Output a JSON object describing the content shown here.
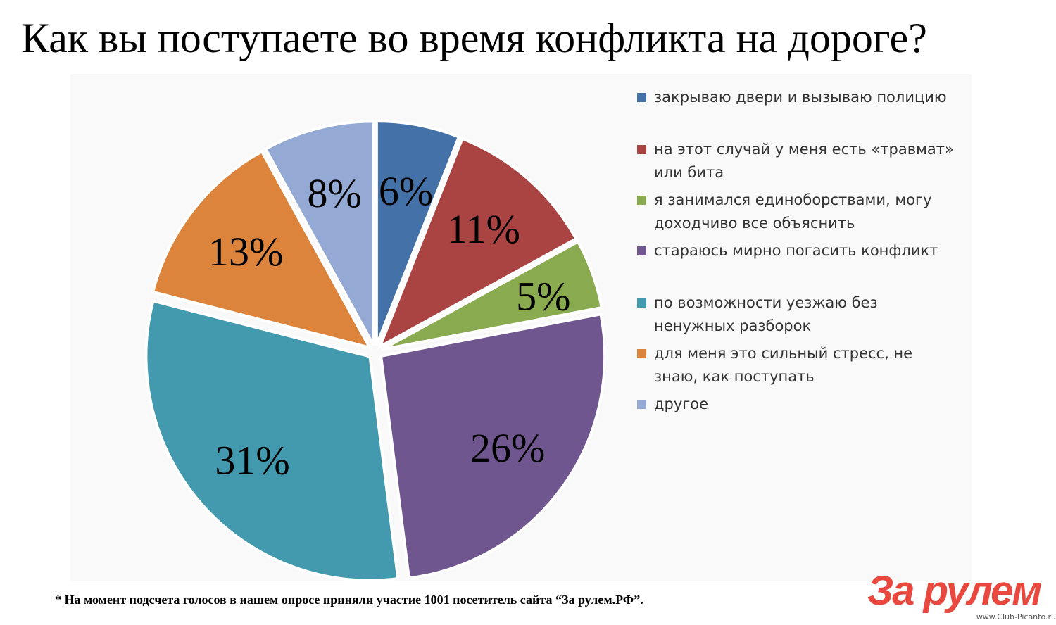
{
  "chart_data": {
    "type": "pie",
    "title": "Как вы поступаете во время конфликта на дороге?",
    "slices": [
      {
        "label": "закрываю двери и вызываю полицию",
        "value": 6,
        "display": "6%",
        "color": "#4472a8"
      },
      {
        "label": " на этот случай у меня есть «травмат» или бита",
        "value": 11,
        "display": "11%",
        "color": "#aa4443"
      },
      {
        "label": "я занимался единоборствами, могу доходчиво все объяснить",
        "value": 5,
        "display": "5%",
        "color": "#8aaa4f"
      },
      {
        "label": "стараюсь мирно погасить конфликт",
        "value": 26,
        "display": "26%",
        "color": "#70568f"
      },
      {
        "label": "по возможности уезжаю без ненужных разборок",
        "value": 31,
        "display": "31%",
        "color": "#4399ad"
      },
      {
        "label": "для меня это сильный стресс, не знаю, как поступать",
        "value": 13,
        "display": "13%",
        "color": "#dd843c"
      },
      {
        "label": "другое",
        "value": 8,
        "display": "8%",
        "color": "#94a9d4"
      }
    ],
    "legend_position": "right"
  },
  "legend_lines": [
    "закрываю двери и вызываю полицию",
    " на этот случай у меня есть «травмат»\nили бита",
    "я занимался единоборствами, могу\nдоходчиво все объяснить",
    "стараюсь мирно погасить конфликт",
    "по возможности уезжаю без\nненужных разборок",
    "для меня это сильный стресс, не\nзнаю, как поступать",
    "другое"
  ],
  "footnote": "* На момент подсчета голосов в нашем опросе приняли участие 1001 посетитель сайта “За рулем.РФ”.",
  "logo_text": "За рулем",
  "watermark": "www.Club-Picanto.ru"
}
